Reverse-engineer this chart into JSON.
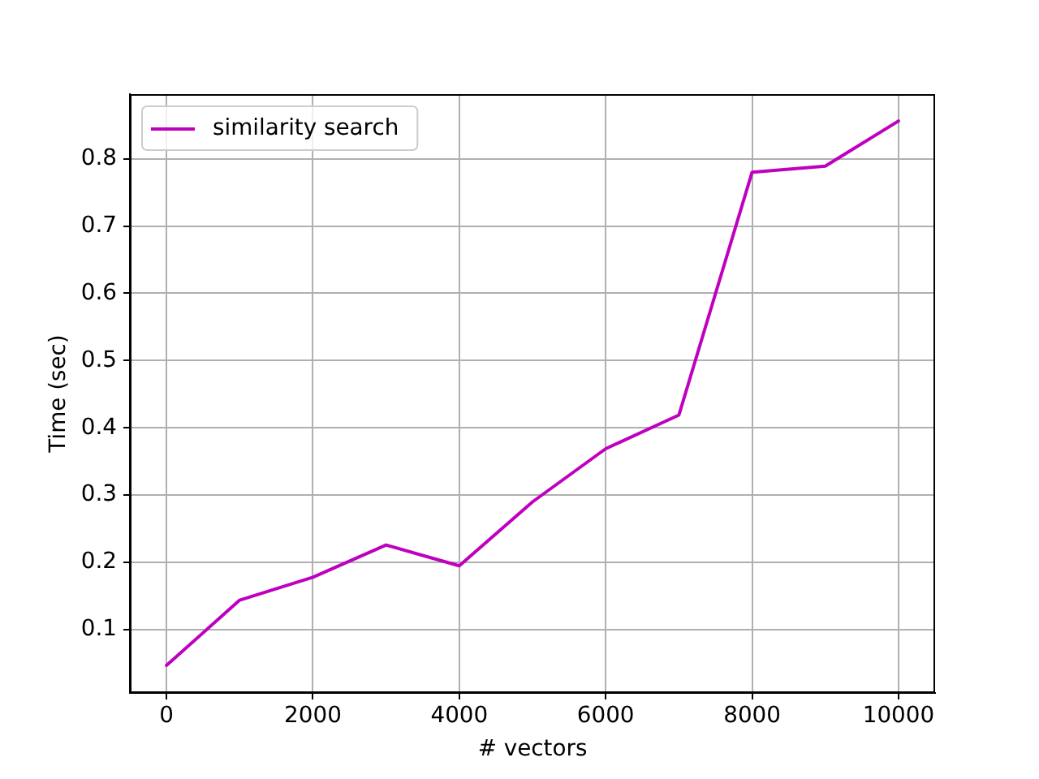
{
  "chart_data": {
    "type": "line",
    "xlabel": "# vectors",
    "ylabel": "Time (sec)",
    "x": [
      0,
      1000,
      2000,
      3000,
      4000,
      5000,
      6000,
      7000,
      8000,
      9000,
      10000
    ],
    "series": [
      {
        "name": "similarity search",
        "color": "#bf00bf",
        "values": [
          0.047,
          0.144,
          0.178,
          0.226,
          0.195,
          0.29,
          0.369,
          0.419,
          0.78,
          0.789,
          0.856
        ]
      }
    ],
    "xlim": [
      -500,
      10500
    ],
    "ylim": [
      0.006,
      0.896
    ],
    "xticks": [
      0,
      2000,
      4000,
      6000,
      8000,
      10000
    ],
    "yticks": [
      0.1,
      0.2,
      0.3,
      0.4,
      0.5,
      0.6,
      0.7,
      0.8
    ],
    "grid": true,
    "legend": "top left",
    "line_style": "solid"
  }
}
